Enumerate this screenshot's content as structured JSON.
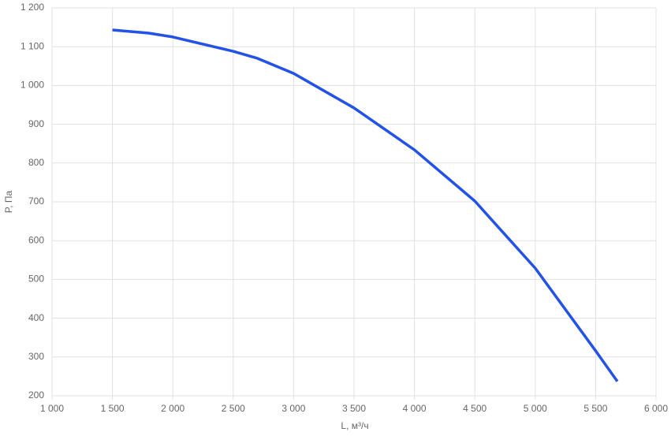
{
  "chart_data": {
    "type": "line",
    "x_label": "L, м³/ч",
    "y_label": "P, Па",
    "x": [
      1500,
      1800,
      2000,
      2500,
      2700,
      3000,
      3500,
      4000,
      4500,
      5000,
      5500,
      5680
    ],
    "series": [
      {
        "color": "#2352e8",
        "values": [
          1143,
          1135,
          1125,
          1088,
          1070,
          1031,
          942,
          834,
          702,
          529,
          316,
          237
        ]
      }
    ],
    "xlim": [
      1000,
      6000
    ],
    "xticks": [
      {
        "value": 1000,
        "label": "1 000"
      },
      {
        "value": 1500,
        "label": "1 500"
      },
      {
        "value": 2000,
        "label": "2 000"
      },
      {
        "value": 2500,
        "label": "2 500"
      },
      {
        "value": 3000,
        "label": "3 000"
      },
      {
        "value": 3500,
        "label": "3 500"
      },
      {
        "value": 4000,
        "label": "4 000"
      },
      {
        "value": 4500,
        "label": "4 500"
      },
      {
        "value": 5000,
        "label": "5 000"
      },
      {
        "value": 5500,
        "label": "5 500"
      },
      {
        "value": 6000,
        "label": "6 000"
      }
    ],
    "ylim": [
      200,
      1200
    ],
    "yticks": [
      200,
      300,
      400,
      500,
      600,
      700,
      800,
      900,
      {
        "value": 1000,
        "label": "1 000"
      },
      {
        "value": 1100,
        "label": "1 100"
      },
      {
        "value": 1200,
        "label": "1 200"
      }
    ],
    "grid": true
  }
}
